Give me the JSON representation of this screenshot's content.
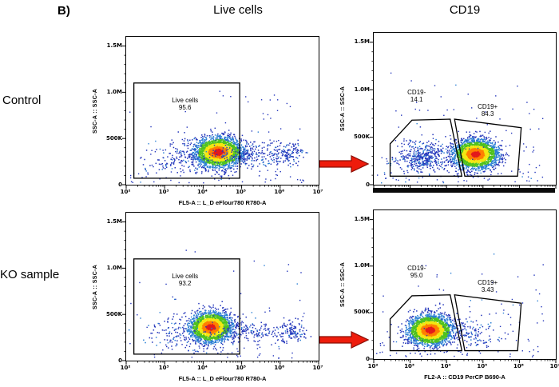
{
  "panel_label": "B)",
  "column_headers": [
    "Live cells",
    "CD19"
  ],
  "row_labels": [
    "Control",
    "KO sample"
  ],
  "style": {
    "arrow_fill": "#ee1c0c",
    "arrow_outline": "#8b0f06",
    "gate_color": "#000000",
    "density_palette": [
      "#e31a1c",
      "#ff7f00",
      "#f2e713",
      "#4fc11e",
      "#2a7fd4",
      "#2436bb"
    ]
  },
  "chart_data": [
    {
      "id": "control-live",
      "type": "scatter",
      "xlabel": "FL5-A :: L_D eFlour780 R780-A",
      "ylabel": "SSC-A :: SSC-A",
      "x_scale": "log10",
      "x_decades": [
        2,
        7
      ],
      "x_tick_labels": [
        "10²",
        "10³",
        "10⁴",
        "10⁵",
        "10⁶",
        "10⁷"
      ],
      "y_max": 1600000,
      "y_ticks": [
        {
          "v": 0,
          "label": "0"
        },
        {
          "v": 500000,
          "label": "500K"
        },
        {
          "v": 1000000,
          "label": "1.0M"
        },
        {
          "v": 1500000,
          "label": "1.5M"
        }
      ],
      "gates": [
        {
          "shape": "rect",
          "x0": 2.2,
          "y0": 70000,
          "x1": 4.95,
          "y1": 1100000,
          "label": {
            "text": "Live cells",
            "value": "95.6",
            "lx": 3.55,
            "ly": 900000
          }
        }
      ],
      "clusters": [
        {
          "lx": 4.4,
          "ly": 350000,
          "sx": 0.3,
          "sy": 80000,
          "n": 2600,
          "dense": true
        },
        {
          "lx": 5.25,
          "ly": 320000,
          "sx": 0.5,
          "sy": 65000,
          "n": 220,
          "dense": false
        },
        {
          "lx": 6.25,
          "ly": 320000,
          "sx": 0.2,
          "sy": 60000,
          "n": 110,
          "dense": false
        },
        {
          "lx": 3.4,
          "ly": 280000,
          "sx": 0.45,
          "sy": 95000,
          "n": 150,
          "dense": false
        }
      ],
      "noise": {
        "n": 120
      }
    },
    {
      "id": "control-cd19",
      "type": "scatter",
      "xlabel": "",
      "ylabel": "SSC-A :: SSC-A",
      "x_scale": "log10",
      "x_decades": [
        2,
        7
      ],
      "x_tick_labels": [],
      "cropped_axis": true,
      "y_max": 1600000,
      "y_ticks": [
        {
          "v": 0,
          "label": "0"
        },
        {
          "v": 500000,
          "label": "500K"
        },
        {
          "v": 1000000,
          "label": "1.0M"
        },
        {
          "v": 1500000,
          "label": "1.5M"
        }
      ],
      "gates": [
        {
          "shape": "poly",
          "points": [
            [
              2.45,
              90000
            ],
            [
              2.45,
              430000
            ],
            [
              3.05,
              680000
            ],
            [
              4.1,
              690000
            ],
            [
              4.42,
              90000
            ]
          ],
          "label": {
            "text": "CD19-",
            "value": "14.1",
            "lx": 3.2,
            "ly": 960000
          }
        },
        {
          "shape": "poly",
          "points": [
            [
              4.22,
              690000
            ],
            [
              6.05,
              600000
            ],
            [
              5.95,
              90000
            ],
            [
              4.5,
              90000
            ]
          ],
          "label": {
            "text": "CD19+",
            "value": "84.3",
            "lx": 5.15,
            "ly": 810000
          }
        }
      ],
      "clusters": [
        {
          "lx": 4.8,
          "ly": 320000,
          "sx": 0.3,
          "sy": 75000,
          "n": 2700,
          "dense": true
        },
        {
          "lx": 3.35,
          "ly": 290000,
          "sx": 0.35,
          "sy": 85000,
          "n": 430,
          "dense": false
        }
      ],
      "noise": {
        "n": 140
      }
    },
    {
      "id": "ko-live",
      "type": "scatter",
      "xlabel": "FL5-A :: L_D eFlour780 R780-A",
      "ylabel": "SSC-A :: SSC-A",
      "x_scale": "log10",
      "x_decades": [
        2,
        7
      ],
      "x_tick_labels": [
        "10²",
        "10³",
        "10⁴",
        "10⁵",
        "10⁶",
        "10⁷"
      ],
      "y_max": 1600000,
      "y_ticks": [
        {
          "v": 0,
          "label": "0"
        },
        {
          "v": 500000,
          "label": "500K"
        },
        {
          "v": 1000000,
          "label": "1.0M"
        },
        {
          "v": 1500000,
          "label": "1.5M"
        }
      ],
      "gates": [
        {
          "shape": "rect",
          "x0": 2.2,
          "y0": 70000,
          "x1": 4.95,
          "y1": 1100000,
          "label": {
            "text": "Live cells",
            "value": "93.2",
            "lx": 3.55,
            "ly": 900000
          }
        }
      ],
      "clusters": [
        {
          "lx": 4.2,
          "ly": 360000,
          "sx": 0.27,
          "sy": 80000,
          "n": 2500,
          "dense": true
        },
        {
          "lx": 5.2,
          "ly": 310000,
          "sx": 0.5,
          "sy": 60000,
          "n": 170,
          "dense": false
        },
        {
          "lx": 6.3,
          "ly": 320000,
          "sx": 0.2,
          "sy": 60000,
          "n": 120,
          "dense": false
        },
        {
          "lx": 3.3,
          "ly": 280000,
          "sx": 0.4,
          "sy": 90000,
          "n": 100,
          "dense": false
        }
      ],
      "noise": {
        "n": 110
      }
    },
    {
      "id": "ko-cd19",
      "type": "scatter",
      "xlabel": "FL2-A :: CD19 PerCP B690-A",
      "ylabel": "SSC-A :: SSC-A",
      "x_scale": "log10",
      "x_decades": [
        2,
        7
      ],
      "x_tick_labels": [
        "10²",
        "10³",
        "10⁴",
        "10⁵",
        "10⁶",
        "10⁷"
      ],
      "y_max": 1600000,
      "y_ticks": [
        {
          "v": 0,
          "label": "0"
        },
        {
          "v": 500000,
          "label": "500K"
        },
        {
          "v": 1000000,
          "label": "1.0M"
        },
        {
          "v": 1500000,
          "label": "1.5M"
        }
      ],
      "gates": [
        {
          "shape": "poly",
          "points": [
            [
              2.45,
              90000
            ],
            [
              2.45,
              430000
            ],
            [
              3.05,
              680000
            ],
            [
              4.1,
              690000
            ],
            [
              4.42,
              90000
            ]
          ],
          "label": {
            "text": "CD19-",
            "value": "95.0",
            "lx": 3.2,
            "ly": 960000
          }
        },
        {
          "shape": "poly",
          "points": [
            [
              4.22,
              690000
            ],
            [
              6.05,
              600000
            ],
            [
              5.95,
              90000
            ],
            [
              4.5,
              90000
            ]
          ],
          "label": {
            "text": "CD19+",
            "value": "3.43",
            "lx": 5.15,
            "ly": 810000
          }
        }
      ],
      "clusters": [
        {
          "lx": 3.55,
          "ly": 310000,
          "sx": 0.3,
          "sy": 80000,
          "n": 2700,
          "dense": true
        },
        {
          "lx": 4.75,
          "ly": 280000,
          "sx": 0.33,
          "sy": 70000,
          "n": 110,
          "dense": false
        }
      ],
      "noise": {
        "n": 130
      }
    }
  ]
}
